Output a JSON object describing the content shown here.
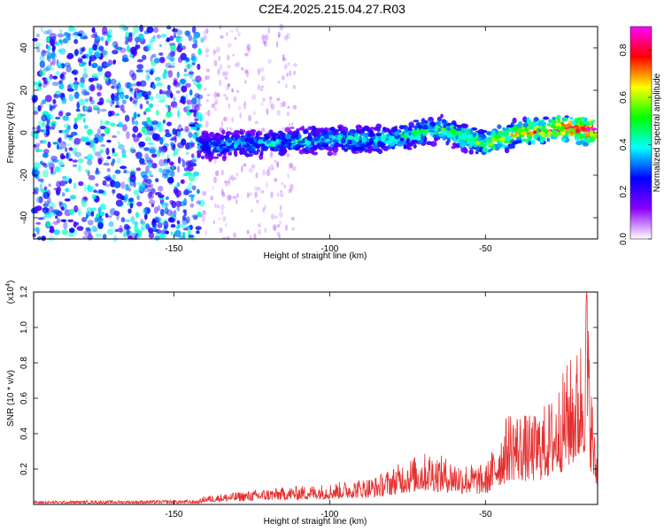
{
  "title": "C2E4.2025.215.04.27.R03",
  "chart_data": [
    {
      "type": "heatmap",
      "name": "spectrogram",
      "xlabel": "Height of straight line (km)",
      "ylabel": "Frequency (Hz)",
      "xlim": [
        -195,
        -14
      ],
      "ylim": [
        -50,
        50
      ],
      "xticks": [
        -150,
        -100,
        -50
      ],
      "yticks": [
        -40,
        -20,
        0,
        20,
        40
      ],
      "colorbar": {
        "label": "Normalized spectral amplitude",
        "range": [
          0.0,
          0.9
        ],
        "ticks": [
          0.0,
          0.2,
          0.4,
          0.6,
          0.8
        ],
        "colors": [
          "#ffffff",
          "#8a00ff",
          "#0000ff",
          "#00ffff",
          "#00ff00",
          "#ffff00",
          "#ff0000",
          "#ff00ff"
        ]
      },
      "ridge": [
        {
          "x": -140,
          "freq": -6,
          "amp": 0.35
        },
        {
          "x": -120,
          "freq": -5,
          "amp": 0.38
        },
        {
          "x": -100,
          "freq": -3,
          "amp": 0.4
        },
        {
          "x": -80,
          "freq": -3,
          "amp": 0.42
        },
        {
          "x": -65,
          "freq": 2,
          "amp": 0.48
        },
        {
          "x": -50,
          "freq": -5,
          "amp": 0.55
        },
        {
          "x": -40,
          "freq": 0,
          "amp": 0.65
        },
        {
          "x": -25,
          "freq": 2,
          "amp": 0.78
        },
        {
          "x": -17,
          "freq": 1,
          "amp": 0.88
        }
      ]
    },
    {
      "type": "line",
      "name": "snr",
      "xlabel": "Height of straight line (km)",
      "ylabel": "SNR (10 * v/v)",
      "multiplier": "(x10^4)",
      "multiplier_base": "(x10",
      "multiplier_exp": "4",
      "multiplier_close": ")",
      "xlim": [
        -195,
        -14
      ],
      "ylim": [
        0,
        1.2
      ],
      "xticks": [
        -150,
        -100,
        -50
      ],
      "yticks": [
        0.2,
        0.4,
        0.6,
        0.8,
        1.0,
        1.2
      ],
      "line_color": "#e53030",
      "envelope": [
        {
          "x": -195,
          "y": 0.02
        },
        {
          "x": -142,
          "y": 0.025
        },
        {
          "x": -140,
          "y": 0.05
        },
        {
          "x": -120,
          "y": 0.09
        },
        {
          "x": -100,
          "y": 0.12
        },
        {
          "x": -85,
          "y": 0.16
        },
        {
          "x": -75,
          "y": 0.26
        },
        {
          "x": -68,
          "y": 0.3
        },
        {
          "x": -58,
          "y": 0.24
        },
        {
          "x": -50,
          "y": 0.22
        },
        {
          "x": -42,
          "y": 0.55
        },
        {
          "x": -35,
          "y": 0.5
        },
        {
          "x": -28,
          "y": 0.62
        },
        {
          "x": -24,
          "y": 0.8
        },
        {
          "x": -20,
          "y": 0.9
        },
        {
          "x": -17.5,
          "y": 1.2
        },
        {
          "x": -15,
          "y": 0.4
        },
        {
          "x": -14,
          "y": 0.3
        }
      ]
    }
  ]
}
